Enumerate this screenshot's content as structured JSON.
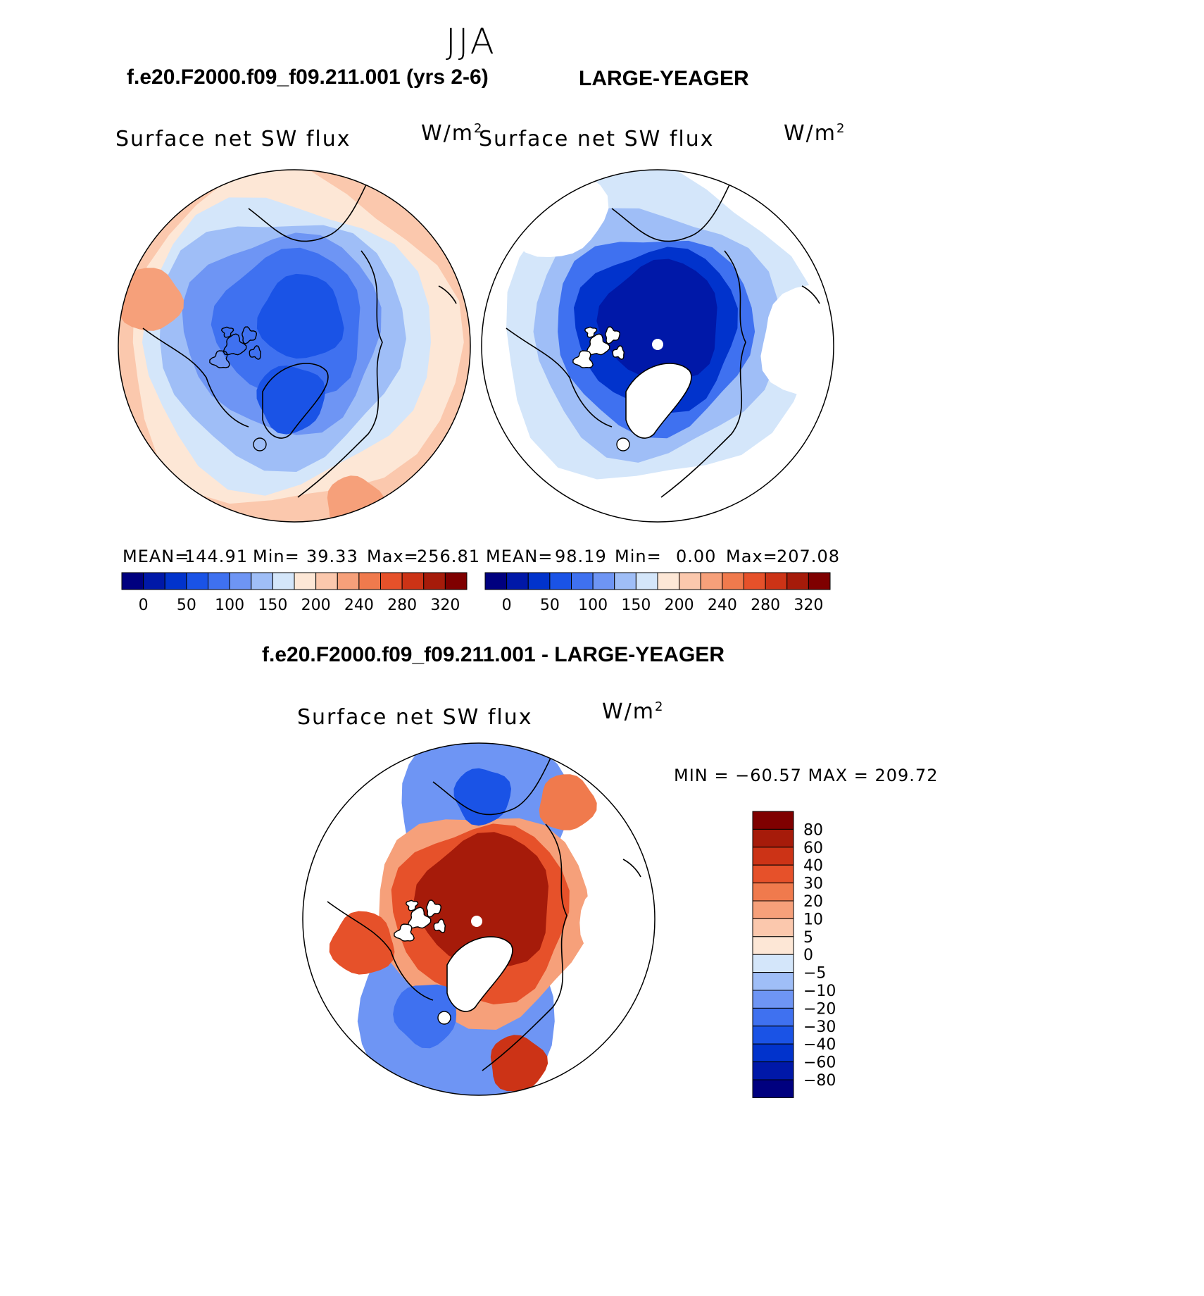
{
  "figure": {
    "season": "JJA",
    "case_title": "f.e20.F2000.f09_f09.211.001 (yrs 2-6)",
    "obs_title": "LARGE-YEAGER",
    "diff_title": "f.e20.F2000.f09_f09.211.001 - LARGE-YEAGER"
  },
  "colors": {
    "abs_scale": [
      "#00007f",
      "#0018a8",
      "#0133cc",
      "#1a53e6",
      "#3f71f0",
      "#6e95f4",
      "#9fbef7",
      "#d4e6fa",
      "#fde7d6",
      "#fbc8ad",
      "#f6a07a",
      "#f07a4d",
      "#e6512a",
      "#cc3316",
      "#a61b0a",
      "#7f0000"
    ],
    "diff_scale": [
      "#00007f",
      "#0018a8",
      "#0133cc",
      "#1a53e6",
      "#3f71f0",
      "#6e95f4",
      "#9fbef7",
      "#d4e6fa",
      "#fde7d6",
      "#fbc8ad",
      "#f6a07a",
      "#f07a4d",
      "#e6512a",
      "#cc3316",
      "#a61b0a",
      "#7f0000"
    ]
  },
  "chart_data": [
    {
      "type": "heatmap",
      "projection": "north-polar-stereographic",
      "title": "Surface net SW flux",
      "units": "W/m",
      "units_sup": "2",
      "mean_label": "MEAN=",
      "mean": "144.91",
      "min_label": "Min=",
      "min": "39.33",
      "max_label": "Max=",
      "max": "256.81",
      "colorbar_levels": [
        0,
        25,
        50,
        75,
        100,
        125,
        150,
        175,
        200,
        220,
        240,
        260,
        280,
        300,
        320
      ],
      "colorbar_tick_labels": [
        "0",
        "50",
        "100",
        "150",
        "200",
        "240",
        "280",
        "320"
      ]
    },
    {
      "type": "heatmap",
      "projection": "north-polar-stereographic",
      "title": "Surface net SW flux",
      "units": "W/m",
      "units_sup": "2",
      "mean_label": "MEAN=",
      "mean": "98.19",
      "min_label": "Min=",
      "min": "0.00",
      "max_label": "Max=",
      "max": "207.08",
      "colorbar_levels": [
        0,
        25,
        50,
        75,
        100,
        125,
        150,
        175,
        200,
        220,
        240,
        260,
        280,
        300,
        320
      ],
      "colorbar_tick_labels": [
        "0",
        "50",
        "100",
        "150",
        "200",
        "240",
        "280",
        "320"
      ]
    },
    {
      "type": "heatmap",
      "projection": "north-polar-stereographic",
      "title": "Surface net SW flux",
      "units": "W/m",
      "units_sup": "2",
      "range_text": "MIN = −60.57 MAX = 209.72",
      "colorbar_levels": [
        80,
        60,
        40,
        30,
        20,
        10,
        5,
        0,
        -5,
        -10,
        -20,
        -30,
        -40,
        -60,
        -80
      ],
      "colorbar_tick_labels": [
        "80",
        "60",
        "40",
        "30",
        "20",
        "10",
        "5",
        "0",
        "−5",
        "−10",
        "−20",
        "−30",
        "−40",
        "−60",
        "−80"
      ]
    }
  ]
}
